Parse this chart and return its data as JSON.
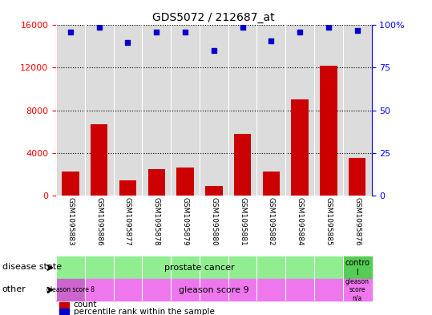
{
  "title": "GDS5072 / 212687_at",
  "categories": [
    "GSM1095883",
    "GSM1095886",
    "GSM1095877",
    "GSM1095878",
    "GSM1095879",
    "GSM1095880",
    "GSM1095881",
    "GSM1095882",
    "GSM1095884",
    "GSM1095885",
    "GSM1095876"
  ],
  "bar_values": [
    2200,
    6700,
    1400,
    2500,
    2600,
    900,
    5800,
    2200,
    9000,
    12200,
    3500
  ],
  "dot_values": [
    96,
    99,
    90,
    96,
    96,
    85,
    99,
    91,
    96,
    99,
    97
  ],
  "ylim_left": [
    0,
    16000
  ],
  "ylim_right": [
    0,
    100
  ],
  "yticks_left": [
    0,
    4000,
    8000,
    12000,
    16000
  ],
  "yticks_right": [
    0,
    25,
    50,
    75,
    100
  ],
  "bar_color": "#CC0000",
  "dot_color": "#0000CC",
  "row_label_disease": "disease state",
  "row_label_other": "other",
  "legend_count": "count",
  "legend_pct": "percentile rank within the sample",
  "bg_color": "#FFFFFF",
  "plot_bg": "#DCDCDC",
  "grid_color": "#000000"
}
